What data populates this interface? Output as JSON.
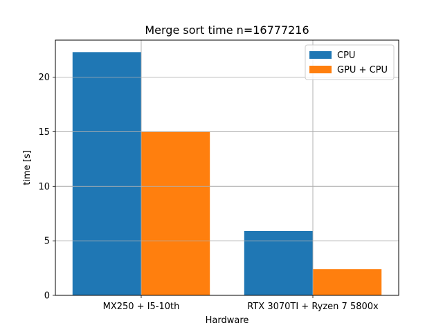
{
  "chart_data": {
    "type": "bar",
    "title": "Merge sort time n=16777216",
    "xlabel": "Hardware",
    "ylabel": "time [s]",
    "categories": [
      "MX250 + I5-10th",
      "RTX 3070TI + Ryzen 7 5800x"
    ],
    "series": [
      {
        "name": "CPU",
        "color": "#1f77b4",
        "values": [
          22.3,
          5.9
        ]
      },
      {
        "name": "GPU + CPU",
        "color": "#ff7f0e",
        "values": [
          15.0,
          2.4
        ]
      }
    ],
    "ylim": [
      0,
      23.4
    ],
    "yticks": [
      0,
      5,
      10,
      15,
      20
    ],
    "grid": true,
    "legend_position": "top-right"
  }
}
